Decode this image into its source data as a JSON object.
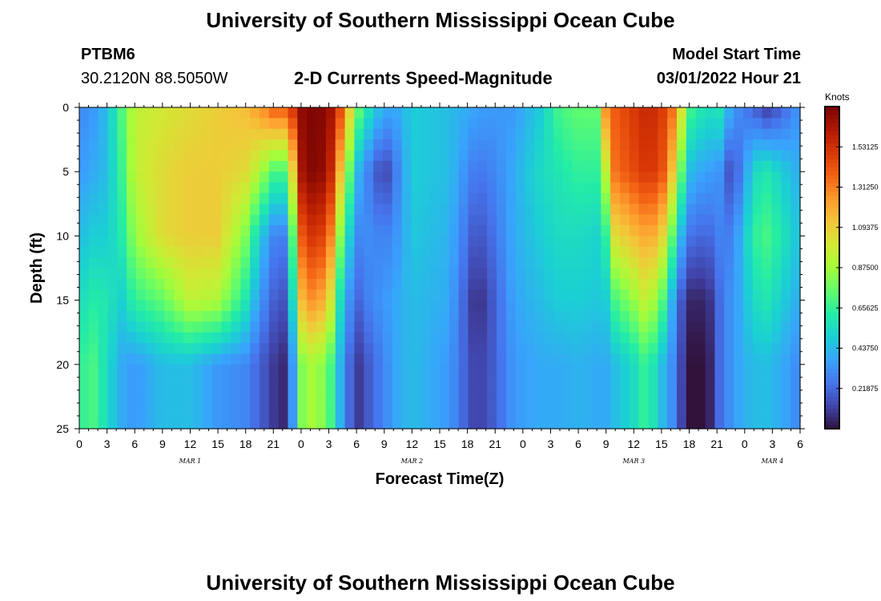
{
  "header": {
    "title": "University of Southern Mississippi Ocean Cube",
    "station_id": "PTBM6",
    "station_coords": "30.2120N  88.5050W",
    "subtitle": "2-D Currents Speed-Magnitude",
    "model_start_label": "Model Start Time",
    "model_start_value": "03/01/2022 Hour 21"
  },
  "footer": {
    "title_repeat": "University of Southern Mississippi Ocean Cube"
  },
  "chart_data": {
    "type": "heatmap",
    "title": "2-D Currents Speed-Magnitude",
    "xlabel": "Forecast Time(Z)",
    "ylabel": "Depth (ft)",
    "x_tick_labels": [
      "0",
      "3",
      "6",
      "9",
      "12",
      "15",
      "18",
      "21",
      "0",
      "3",
      "6",
      "9",
      "12",
      "15",
      "18",
      "21",
      "0",
      "3",
      "6",
      "9",
      "12",
      "15",
      "18",
      "21",
      "0",
      "3",
      "6"
    ],
    "x_range_hours": [
      0,
      78
    ],
    "day_labels": [
      {
        "label": "MAR 1",
        "hour": 12
      },
      {
        "label": "MAR 2",
        "hour": 36
      },
      {
        "label": "MAR 3",
        "hour": 60
      },
      {
        "label": "MAR 4",
        "hour": 75
      }
    ],
    "y_ticks": [
      0,
      5,
      10,
      15,
      20,
      25
    ],
    "y_range_ft": [
      0,
      25
    ],
    "y_inverted": true,
    "colorbar": {
      "units": "Knots",
      "range": [
        0,
        1.75
      ],
      "tick_labels": [
        "1.53125",
        "1.31250",
        "1.09375",
        "0.87500",
        "0.65625",
        "0.43750",
        "0.21875"
      ],
      "tick_values": [
        1.53125,
        1.3125,
        1.09375,
        0.875,
        0.65625,
        0.4375,
        0.21875
      ],
      "colors": [
        "#30123b",
        "#4145ab",
        "#4675ed",
        "#39a2fc",
        "#1bcfd4",
        "#24eca6",
        "#61fc6c",
        "#a4fc3b",
        "#d1e834",
        "#f3c63a",
        "#fe9b2d",
        "#f36315",
        "#d93806",
        "#b11901",
        "#7a0403"
      ]
    },
    "time_keys": [
      0,
      1.5,
      3,
      4.5,
      6,
      9,
      12,
      15,
      18,
      19.5,
      21,
      22.5,
      24,
      25.5,
      27,
      28.5,
      30,
      31.5,
      33,
      34.5,
      36,
      40,
      43,
      45,
      47,
      50,
      52,
      54,
      56,
      57,
      58,
      60,
      61,
      62,
      63,
      64,
      65,
      66,
      68,
      69,
      70,
      71.5,
      73,
      74.5,
      76,
      78
    ],
    "depth_keys_ft": [
      0,
      5,
      10,
      15,
      20,
      25
    ],
    "speed_knots": [
      [
        0.3,
        0.35,
        0.45,
        0.55,
        0.65
      ],
      [
        0.35,
        0.4,
        0.5,
        0.62,
        0.7
      ],
      [
        0.45,
        0.45,
        0.5,
        0.6,
        0.55
      ],
      [
        0.7,
        0.65,
        0.6,
        0.5,
        0.4
      ],
      [
        0.95,
        0.95,
        0.85,
        0.65,
        0.35
      ],
      [
        1.0,
        1.05,
        1.05,
        0.75,
        0.45
      ],
      [
        1.05,
        1.1,
        1.1,
        0.95,
        0.45
      ],
      [
        1.1,
        1.1,
        1.1,
        0.9,
        0.35
      ],
      [
        1.15,
        1.05,
        0.8,
        0.6,
        0.3
      ],
      [
        1.25,
        0.9,
        0.5,
        0.35,
        0.2
      ],
      [
        1.4,
        0.7,
        0.3,
        0.2,
        0.1
      ],
      [
        1.4,
        0.7,
        0.28,
        0.15,
        0.05
      ],
      [
        1.7,
        1.65,
        1.4,
        1.15,
        0.8
      ],
      [
        1.75,
        1.75,
        1.55,
        1.3,
        0.9
      ],
      [
        1.7,
        1.65,
        1.4,
        1.1,
        0.75
      ],
      [
        1.4,
        1.05,
        0.7,
        0.45,
        0.35
      ],
      [
        0.8,
        0.45,
        0.3,
        0.2,
        0.08
      ],
      [
        0.55,
        0.25,
        0.32,
        0.3,
        0.2
      ],
      [
        0.4,
        0.1,
        0.28,
        0.35,
        0.3
      ],
      [
        0.4,
        0.3,
        0.35,
        0.4,
        0.4
      ],
      [
        0.5,
        0.5,
        0.48,
        0.45,
        0.45
      ],
      [
        0.45,
        0.45,
        0.42,
        0.4,
        0.35
      ],
      [
        0.38,
        0.25,
        0.15,
        0.05,
        0.1
      ],
      [
        0.35,
        0.3,
        0.25,
        0.2,
        0.2
      ],
      [
        0.35,
        0.4,
        0.4,
        0.38,
        0.35
      ],
      [
        0.5,
        0.55,
        0.5,
        0.45,
        0.4
      ],
      [
        0.7,
        0.6,
        0.55,
        0.5,
        0.4
      ],
      [
        0.75,
        0.65,
        0.55,
        0.5,
        0.42
      ],
      [
        0.75,
        0.65,
        0.52,
        0.48,
        0.4
      ],
      [
        1.3,
        0.95,
        0.65,
        0.5,
        0.4
      ],
      [
        1.4,
        1.35,
        1.05,
        0.7,
        0.45
      ],
      [
        1.5,
        1.45,
        1.15,
        0.85,
        0.55
      ],
      [
        1.55,
        1.5,
        1.2,
        0.95,
        0.65
      ],
      [
        1.55,
        1.5,
        1.2,
        0.9,
        0.6
      ],
      [
        1.5,
        1.45,
        1.1,
        0.75,
        0.45
      ],
      [
        1.4,
        1.2,
        0.8,
        0.45,
        0.35
      ],
      [
        1.1,
        0.8,
        0.45,
        0.2,
        0.15
      ],
      [
        0.7,
        0.45,
        0.25,
        0.05,
        0.0
      ],
      [
        0.55,
        0.35,
        0.2,
        0.05,
        0.0
      ],
      [
        0.65,
        0.4,
        0.3,
        0.2,
        0.2
      ],
      [
        0.45,
        0.15,
        0.25,
        0.3,
        0.3
      ],
      [
        0.3,
        0.25,
        0.4,
        0.4,
        0.4
      ],
      [
        0.2,
        0.55,
        0.65,
        0.55,
        0.45
      ],
      [
        0.1,
        0.6,
        0.7,
        0.6,
        0.45
      ],
      [
        0.2,
        0.5,
        0.6,
        0.5,
        0.4
      ],
      [
        0.35,
        0.4,
        0.45,
        0.4,
        0.3
      ]
    ]
  }
}
